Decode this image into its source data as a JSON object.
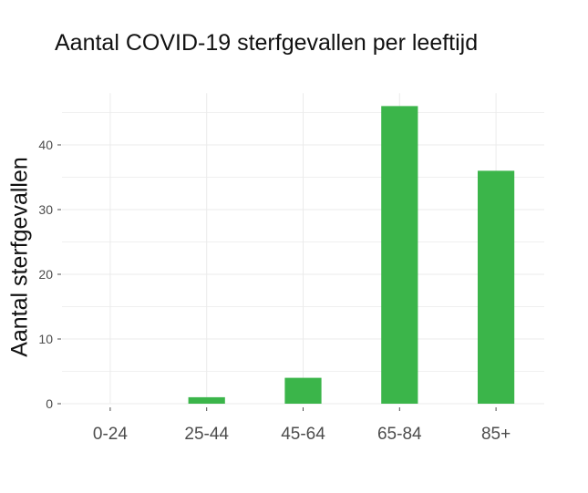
{
  "chart_data": {
    "type": "bar",
    "title": "Aantal COVID-19 sterfgevallen per leeftijd",
    "xlabel": "",
    "ylabel": "Aantal sterfgevallen",
    "categories": [
      "0-24",
      "25-44",
      "45-64",
      "65-84",
      "85+"
    ],
    "values": [
      0,
      1,
      4,
      46,
      36
    ],
    "ylim": [
      0,
      48
    ],
    "yticks": [
      0,
      10,
      20,
      30,
      40
    ],
    "grid": true,
    "bar_color": "#3bb54a",
    "grid_color": "#ebebeb"
  }
}
